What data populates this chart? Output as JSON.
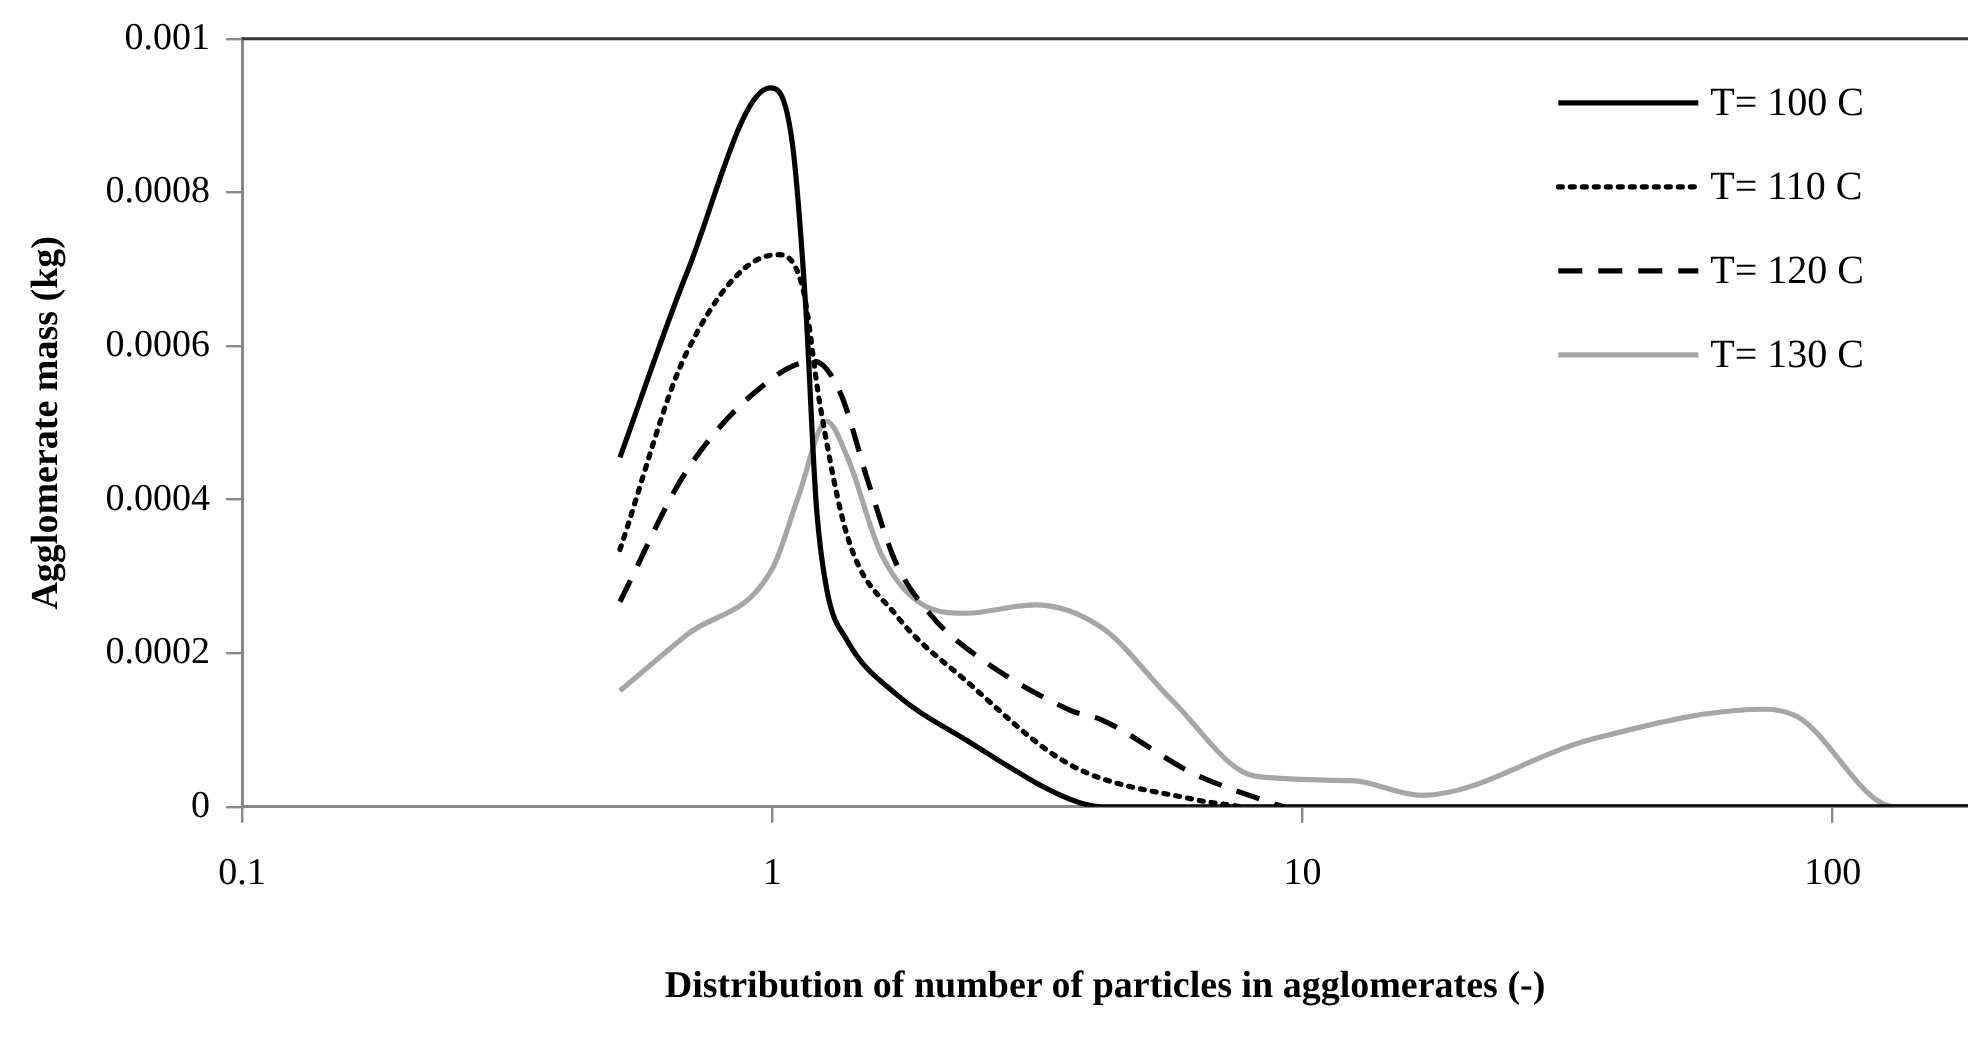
{
  "chart_data": {
    "type": "line",
    "xlabel": "Distribution of number of particles in agglomerates (-)",
    "ylabel": "Agglomerate mass (kg)",
    "log": "x",
    "xlim": [
      0.1,
      180
    ],
    "xticks": [
      0.1,
      1,
      10,
      100
    ],
    "ylim": [
      0,
      0.001
    ],
    "yticks": [
      0,
      0.0002,
      0.0004,
      0.0006,
      0.0008,
      0.001
    ],
    "legend": "top right",
    "marker": "none",
    "series": [
      {
        "name": "T= 100 C",
        "color": "#000000",
        "line_style": "solid",
        "x": [
          0.516,
          0.69,
          0.99,
          1.09,
          1.156,
          1.21,
          1.266,
          1.386,
          1.71,
          2.32,
          3.64,
          4.19,
          10,
          100,
          180
        ],
        "values": [
          0.000455,
          0.000695,
          0.000936,
          0.000866,
          0.000652,
          0.000395,
          0.000284,
          0.000216,
          0.000147,
          8.7e-05,
          1e-05,
          0,
          0,
          0,
          0
        ]
      },
      {
        "name": "T= 110 C",
        "color": "#000000",
        "line_style": "dotted",
        "x": [
          0.516,
          0.69,
          1.02,
          1.14,
          1.23,
          1.386,
          1.71,
          2.32,
          3.64,
          6.2,
          7.7
        ],
        "values": [
          0.000335,
          0.000592,
          0.000719,
          0.000677,
          0.000524,
          0.000352,
          0.00025,
          0.000164,
          5.5e-05,
          1e-05,
          0
        ]
      },
      {
        "name": "T= 120 C",
        "color": "#000000",
        "line_style": "dashed",
        "x": [
          0.516,
          0.69,
          1.02,
          1.2,
          1.34,
          1.52,
          1.71,
          1.99,
          2.32,
          3.64,
          4.19,
          6.2,
          8.65,
          9.2
        ],
        "values": [
          0.000267,
          0.000438,
          0.000562,
          0.00058,
          0.000541,
          0.000421,
          0.000318,
          0.00025,
          0.000207,
          0.000126,
          0.000113,
          4.4e-05,
          6e-06,
          0
        ]
      },
      {
        "name": "T= 130 C",
        "color": "#a6a6a6",
        "line_style": "solid",
        "x": [
          0.516,
          0.69,
          1.0,
          1.12,
          1.266,
          1.386,
          1.61,
          1.99,
          2.32,
          3.13,
          4.19,
          5.67,
          8.14,
          12.4,
          16.8,
          34.7,
          74,
          86,
          131,
          180
        ],
        "values": [
          0.000151,
          0.000224,
          0.00031,
          0.000404,
          0.000502,
          0.000455,
          0.000327,
          0.000258,
          0.000252,
          0.000263,
          0.000233,
          0.000139,
          4e-05,
          3.4e-05,
          1.5e-05,
          8.7e-05,
          0.000127,
          0.000117,
          0,
          0
        ]
      }
    ]
  }
}
